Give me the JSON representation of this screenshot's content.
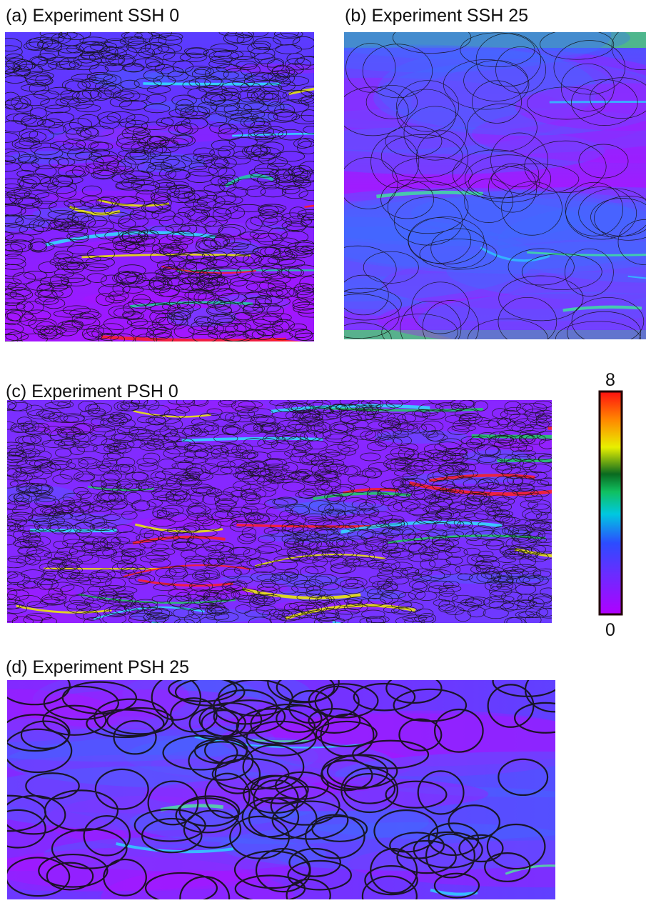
{
  "panels": [
    {
      "label": "(a) Experiment SSH 0"
    },
    {
      "label": "(b) Experiment SSH 25"
    },
    {
      "label": "(c) Experiment PSH 0"
    },
    {
      "label": "(d) Experiment PSH 25"
    }
  ],
  "colorbar": {
    "min": 0,
    "max": 8
  }
}
